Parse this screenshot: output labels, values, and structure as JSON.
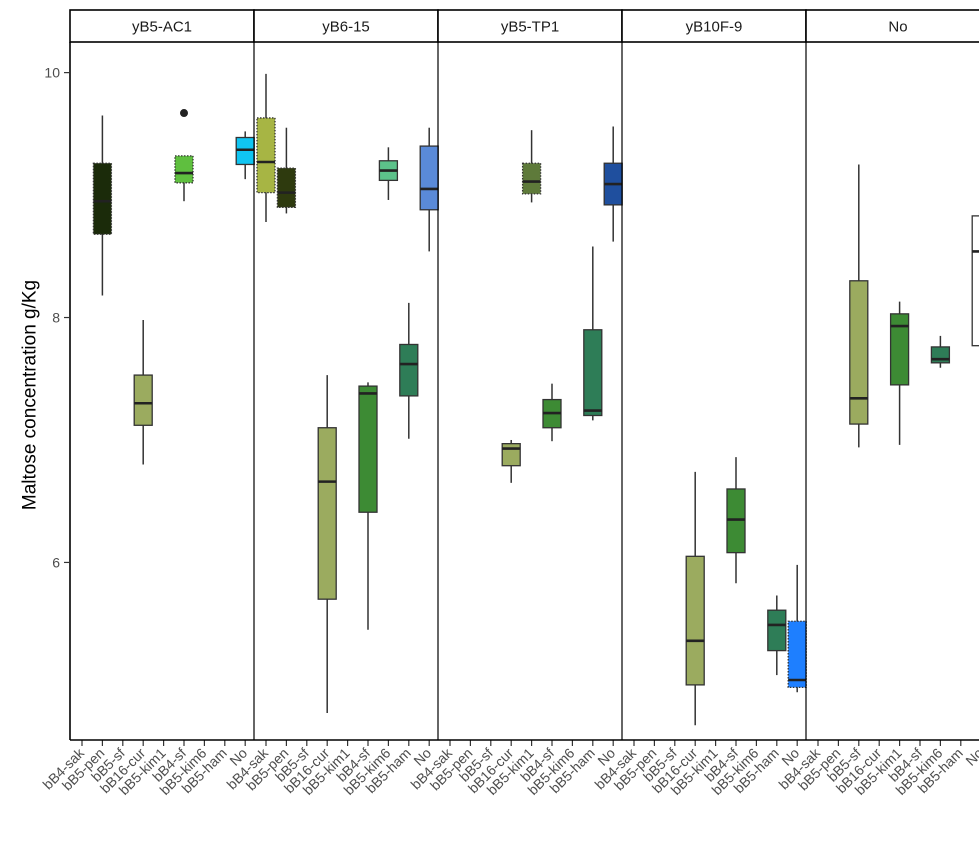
{
  "chart_data": {
    "type": "box",
    "ylabel": "Maltose concentration g/Kg",
    "xlabel": "",
    "ylim": [
      4.55,
      10.25
    ],
    "yticks": [
      6,
      8,
      10
    ],
    "grid": false,
    "facets": [
      {
        "label": "yB5-AC1",
        "categories": [
          "bB4-sak",
          "bB5-pen",
          "bB5-sf",
          "bB16-cur",
          "bB5-kim1",
          "bB4-sf",
          "bB5-kim6",
          "bB5-ham",
          "No"
        ],
        "boxes": [
          {
            "category": "bB5-pen",
            "min": 8.18,
            "q1": 8.68,
            "median": 8.95,
            "q3": 9.26,
            "max": 9.65,
            "color": "#1b2b0a",
            "dotted": true
          },
          {
            "category": "bB16-cur",
            "min": 6.8,
            "q1": 7.12,
            "median": 7.3,
            "q3": 7.53,
            "max": 7.98,
            "color": "#9bab5f",
            "dotted": false
          },
          {
            "category": "bB4-sf",
            "min": 8.95,
            "q1": 9.1,
            "median": 9.18,
            "q3": 9.32,
            "max": 9.32,
            "color": "#5fbf3f",
            "dotted": true,
            "outliers": [
              9.67
            ]
          },
          {
            "category": "No",
            "min": 9.13,
            "q1": 9.25,
            "median": 9.37,
            "q3": 9.47,
            "max": 9.52,
            "color": "#10c5f2",
            "dotted": false
          }
        ]
      },
      {
        "label": "yB6-15",
        "categories": [
          "bB4-sak",
          "bB5-pen",
          "bB5-sf",
          "bB16-cur",
          "bB5-kim1",
          "bB4-sf",
          "bB5-kim6",
          "bB5-ham",
          "No"
        ],
        "boxes": [
          {
            "category": "bB4-sak",
            "min": 8.78,
            "q1": 9.02,
            "median": 9.27,
            "q3": 9.63,
            "max": 9.99,
            "color": "#a7b544",
            "dotted": true
          },
          {
            "category": "bB5-pen",
            "min": 8.85,
            "q1": 8.9,
            "median": 9.02,
            "q3": 9.22,
            "max": 9.55,
            "color": "#2e3a0e",
            "dotted": true
          },
          {
            "category": "bB16-cur",
            "min": 4.77,
            "q1": 5.7,
            "median": 6.66,
            "q3": 7.1,
            "max": 7.53,
            "color": "#9bab5f",
            "dotted": false
          },
          {
            "category": "bB4-sf",
            "min": 5.45,
            "q1": 6.41,
            "median": 7.38,
            "q3": 7.44,
            "max": 7.47,
            "color": "#3d8b34",
            "dotted": false
          },
          {
            "category": "bB5-kim6",
            "min": 8.96,
            "q1": 9.12,
            "median": 9.2,
            "q3": 9.28,
            "max": 9.39,
            "color": "#5cc28a",
            "dotted": false
          },
          {
            "category": "bB5-ham",
            "min": 7.01,
            "q1": 7.36,
            "median": 7.62,
            "q3": 7.78,
            "max": 8.12,
            "color": "#2e7d57",
            "dotted": false
          },
          {
            "category": "No",
            "min": 8.54,
            "q1": 8.88,
            "median": 9.05,
            "q3": 9.4,
            "max": 9.55,
            "color": "#5a8ad8",
            "dotted": false
          }
        ]
      },
      {
        "label": "yB5-TP1",
        "categories": [
          "bB4-sak",
          "bB5-pen",
          "bB5-sf",
          "bB16-cur",
          "bB5-kim1",
          "bB4-sf",
          "bB5-kim6",
          "bB5-ham",
          "No"
        ],
        "boxes": [
          {
            "category": "bB16-cur",
            "min": 6.65,
            "q1": 6.79,
            "median": 6.93,
            "q3": 6.97,
            "max": 7.0,
            "color": "#9bab5f",
            "dotted": false
          },
          {
            "category": "bB5-kim1",
            "min": 8.94,
            "q1": 9.01,
            "median": 9.11,
            "q3": 9.26,
            "max": 9.53,
            "color": "#5e7a3a",
            "dotted": true
          },
          {
            "category": "bB4-sf",
            "min": 6.99,
            "q1": 7.1,
            "median": 7.22,
            "q3": 7.33,
            "max": 7.46,
            "color": "#3d8b34",
            "dotted": false
          },
          {
            "category": "bB5-ham",
            "min": 7.16,
            "q1": 7.2,
            "median": 7.24,
            "q3": 7.9,
            "max": 8.58,
            "color": "#2e7d57",
            "dotted": false
          },
          {
            "category": "No",
            "min": 8.62,
            "q1": 8.92,
            "median": 9.09,
            "q3": 9.26,
            "max": 9.56,
            "color": "#1f4f9e",
            "dotted": false
          }
        ]
      },
      {
        "label": "yB10F-9",
        "categories": [
          "bB4-sak",
          "bB5-pen",
          "bB5-sf",
          "bB16-cur",
          "bB5-kim1",
          "bB4-sf",
          "bB5-kim6",
          "bB5-ham",
          "No"
        ],
        "boxes": [
          {
            "category": "bB16-cur",
            "min": 4.67,
            "q1": 5.0,
            "median": 5.36,
            "q3": 6.05,
            "max": 6.74,
            "color": "#9bab5f",
            "dotted": false
          },
          {
            "category": "bB4-sf",
            "min": 5.83,
            "q1": 6.08,
            "median": 6.35,
            "q3": 6.6,
            "max": 6.86,
            "color": "#3d8b34",
            "dotted": false
          },
          {
            "category": "bB5-ham",
            "min": 5.08,
            "q1": 5.28,
            "median": 5.49,
            "q3": 5.61,
            "max": 5.73,
            "color": "#2e7d57",
            "dotted": false
          },
          {
            "category": "No",
            "min": 4.94,
            "q1": 4.98,
            "median": 5.04,
            "q3": 5.52,
            "max": 5.98,
            "color": "#1e7fff",
            "dotted": true
          }
        ]
      },
      {
        "label": "No",
        "categories": [
          "bB4-sak",
          "bB5-pen",
          "bB5-sf",
          "bB16-cur",
          "bB5-kim1",
          "bB4-sf",
          "bB5-kim6",
          "bB5-ham",
          "No"
        ],
        "boxes": [
          {
            "category": "bB5-sf",
            "min": 6.94,
            "q1": 7.13,
            "median": 7.34,
            "q3": 8.3,
            "max": 9.25,
            "color": "#9bab5f",
            "dotted": false
          },
          {
            "category": "bB5-kim1",
            "min": 6.96,
            "q1": 7.45,
            "median": 7.93,
            "q3": 8.03,
            "max": 8.13,
            "color": "#3d8b34",
            "dotted": false
          },
          {
            "category": "bB5-kim6",
            "min": 7.59,
            "q1": 7.63,
            "median": 7.66,
            "q3": 7.76,
            "max": 7.85,
            "color": "#2e7d57",
            "dotted": false
          },
          {
            "category": "No",
            "min": 7.36,
            "q1": 7.77,
            "median": 8.54,
            "q3": 8.83,
            "max": 8.92,
            "color": "#ffffff",
            "dotted": false
          }
        ]
      }
    ]
  }
}
